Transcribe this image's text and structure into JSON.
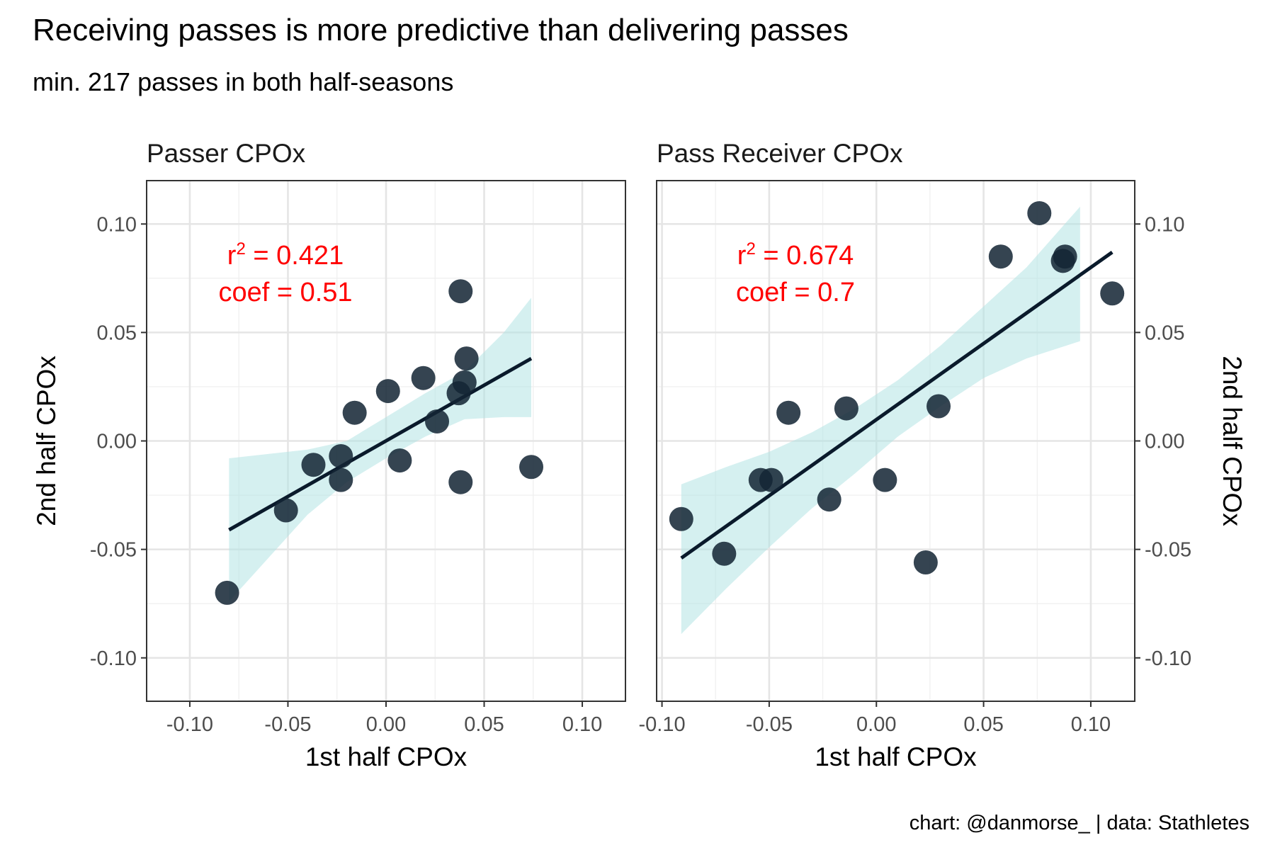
{
  "title": "Receiving passes is more predictive than delivering passes",
  "subtitle": "min. 217 passes in both half-seasons",
  "caption": "chart: @danmorse_ | data: Stathletes",
  "chart_data": [
    {
      "type": "scatter",
      "panel_title": "Passer CPOx",
      "xlabel": "1st half CPOx",
      "ylabel": "2nd half CPOx",
      "ylabel_side": "left",
      "xlim": [
        -0.122,
        0.122
      ],
      "ylim": [
        -0.12,
        0.12
      ],
      "x_ticks": [
        -0.1,
        -0.05,
        0.0,
        0.05,
        0.1
      ],
      "y_ticks": [
        -0.1,
        -0.05,
        0.0,
        0.05,
        0.1
      ],
      "tick_labels": [
        "-0.10",
        "-0.05",
        "0.00",
        "0.05",
        "0.10"
      ],
      "grid": true,
      "point_color": "#142534",
      "points": [
        {
          "x": -0.081,
          "y": -0.07
        },
        {
          "x": -0.051,
          "y": -0.032
        },
        {
          "x": -0.037,
          "y": -0.011
        },
        {
          "x": -0.023,
          "y": -0.007
        },
        {
          "x": -0.023,
          "y": -0.018
        },
        {
          "x": -0.016,
          "y": 0.013
        },
        {
          "x": 0.001,
          "y": 0.023
        },
        {
          "x": 0.007,
          "y": -0.009
        },
        {
          "x": 0.019,
          "y": 0.029
        },
        {
          "x": 0.026,
          "y": 0.009
        },
        {
          "x": 0.037,
          "y": 0.022
        },
        {
          "x": 0.04,
          "y": 0.027
        },
        {
          "x": 0.041,
          "y": 0.038
        },
        {
          "x": 0.038,
          "y": 0.069
        },
        {
          "x": 0.038,
          "y": -0.019
        },
        {
          "x": 0.074,
          "y": -0.012
        }
      ],
      "fit": {
        "x": [
          -0.08,
          0.074
        ],
        "y": [
          -0.041,
          0.038
        ],
        "color": "#0a1a2b"
      },
      "ribbon": {
        "x": [
          -0.08,
          -0.06,
          -0.04,
          -0.02,
          0.0,
          0.02,
          0.04,
          0.06,
          0.074
        ],
        "lower": [
          -0.074,
          -0.054,
          -0.034,
          -0.019,
          -0.008,
          0.002,
          0.01,
          0.011,
          0.011
        ],
        "upper": [
          -0.008,
          -0.006,
          -0.004,
          0.0,
          0.011,
          0.022,
          0.032,
          0.05,
          0.066
        ],
        "color": "#b3e4e4"
      },
      "r2_label": "r",
      "r2_exp": "2",
      "r2_eq": " = 0.421",
      "coef_label": "coef = 0.51",
      "annotation_color": "#ff0000"
    },
    {
      "type": "scatter",
      "panel_title": "Pass Receiver CPOx",
      "xlabel": "1st half CPOx",
      "ylabel": "2nd half CPOx",
      "ylabel_side": "right",
      "xlim": [
        -0.1025,
        0.1205
      ],
      "ylim": [
        -0.12,
        0.12
      ],
      "x_ticks": [
        -0.1,
        -0.05,
        0.0,
        0.05,
        0.1
      ],
      "y_ticks": [
        -0.1,
        -0.05,
        0.0,
        0.05,
        0.1
      ],
      "tick_labels": [
        "-0.10",
        "-0.05",
        "0.00",
        "0.05",
        "0.10"
      ],
      "grid": true,
      "point_color": "#142534",
      "points": [
        {
          "x": -0.091,
          "y": -0.036
        },
        {
          "x": -0.071,
          "y": -0.052
        },
        {
          "x": -0.054,
          "y": -0.018
        },
        {
          "x": -0.049,
          "y": -0.018
        },
        {
          "x": -0.041,
          "y": 0.013
        },
        {
          "x": -0.022,
          "y": -0.027
        },
        {
          "x": -0.014,
          "y": 0.015
        },
        {
          "x": 0.004,
          "y": -0.018
        },
        {
          "x": 0.023,
          "y": -0.056
        },
        {
          "x": 0.029,
          "y": 0.016
        },
        {
          "x": 0.058,
          "y": 0.085
        },
        {
          "x": 0.076,
          "y": 0.105
        },
        {
          "x": 0.087,
          "y": 0.083
        },
        {
          "x": 0.088,
          "y": 0.085
        },
        {
          "x": 0.11,
          "y": 0.068
        }
      ],
      "fit": {
        "x": [
          -0.091,
          0.11
        ],
        "y": [
          -0.054,
          0.087
        ],
        "color": "#0a1a2b"
      },
      "ribbon": {
        "x": [
          -0.091,
          -0.07,
          -0.05,
          -0.03,
          -0.01,
          0.01,
          0.03,
          0.05,
          0.07,
          0.095
        ],
        "lower": [
          -0.089,
          -0.068,
          -0.049,
          -0.031,
          -0.015,
          0.002,
          0.016,
          0.029,
          0.038,
          0.046
        ],
        "upper": [
          -0.02,
          -0.012,
          -0.005,
          0.004,
          0.015,
          0.028,
          0.044,
          0.062,
          0.08,
          0.108
        ],
        "color": "#b3e4e4"
      },
      "r2_label": "r",
      "r2_exp": "2",
      "r2_eq": " = 0.674",
      "coef_label": "coef = 0.7",
      "annotation_color": "#ff0000"
    }
  ]
}
